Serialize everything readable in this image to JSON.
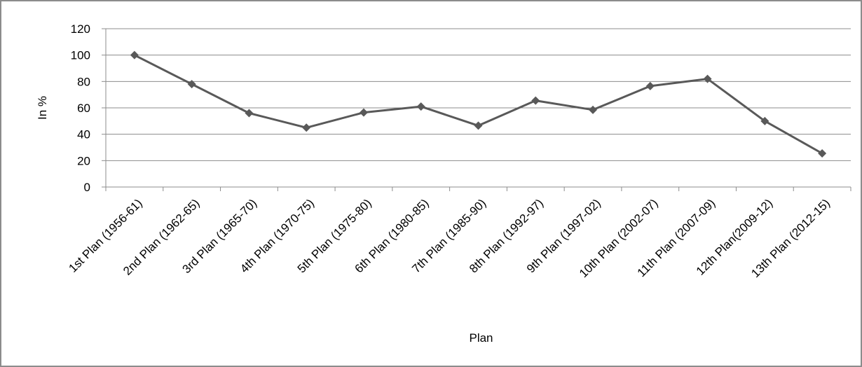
{
  "chart_data": {
    "type": "line",
    "title": "",
    "xlabel": "Plan",
    "ylabel": "In %",
    "ylim": [
      0,
      120
    ],
    "yticks": [
      0,
      20,
      40,
      60,
      80,
      100,
      120
    ],
    "grid": true,
    "legend": "none",
    "categories": [
      "1st Plan (1956-61)",
      "2nd Plan (1962-65)",
      "3rd Plan (1965-70)",
      "4th Plan (1970-75)",
      "5th Plan (1975-80)",
      "6th Plan (1980-85)",
      "7th Plan (1985-90)",
      "8th Plan (1992-97)",
      "9th Plan (1997-02)",
      "10th Plan (2002-07)",
      "11th Plan (2007-09)",
      "12th Plan(2009-12)",
      "13th Plan (2012-15)"
    ],
    "series": [
      {
        "values": [
          100,
          78,
          56,
          45,
          56.5,
          61,
          46.5,
          65.5,
          58.5,
          76.5,
          82,
          50,
          25.5
        ],
        "color": "#595959",
        "marker": "diamond"
      }
    ]
  }
}
